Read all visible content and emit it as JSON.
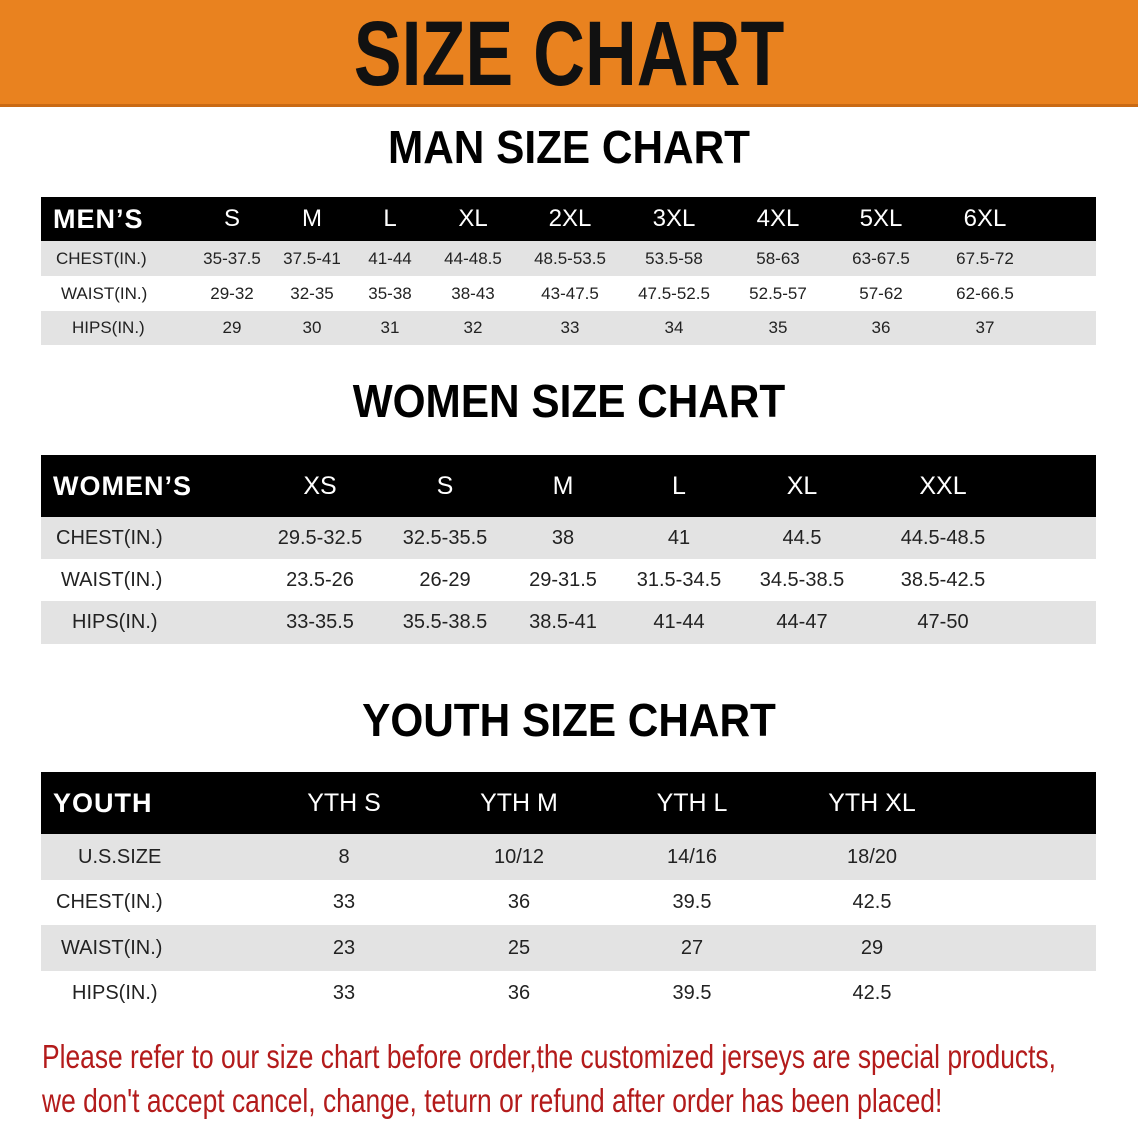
{
  "banner": {
    "title": "SIZE CHART",
    "color": "#e9821f"
  },
  "men": {
    "title": "MAN SIZE CHART",
    "header_label": "MEN’S",
    "sizes": [
      "S",
      "M",
      "L",
      "XL",
      "2XL",
      "3XL",
      "4XL",
      "5XL",
      "6XL"
    ],
    "rows": [
      {
        "label": "CHEST(IN.)",
        "values": [
          "35-37.5",
          "37.5-41",
          "41-44",
          "44-48.5",
          "48.5-53.5",
          "53.5-58",
          "58-63",
          "63-67.5",
          "67.5-72"
        ]
      },
      {
        "label": "WAIST(IN.)",
        "values": [
          "29-32",
          "32-35",
          "35-38",
          "38-43",
          "43-47.5",
          "47.5-52.5",
          "52.5-57",
          "57-62",
          "62-66.5"
        ]
      },
      {
        "label": "HIPS(IN.)",
        "values": [
          "29",
          "30",
          "31",
          "32",
          "33",
          "34",
          "35",
          "36",
          "37"
        ]
      }
    ]
  },
  "women": {
    "title": "WOMEN SIZE CHART",
    "header_label": "WOMEN’S",
    "sizes": [
      "XS",
      "S",
      "M",
      "L",
      "XL",
      "XXL"
    ],
    "rows": [
      {
        "label": "CHEST(IN.)",
        "values": [
          "29.5-32.5",
          "32.5-35.5",
          "38",
          "41",
          "44.5",
          "44.5-48.5"
        ]
      },
      {
        "label": "WAIST(IN.)",
        "values": [
          "23.5-26",
          "26-29",
          "29-31.5",
          "31.5-34.5",
          "34.5-38.5",
          "38.5-42.5"
        ]
      },
      {
        "label": "HIPS(IN.)",
        "values": [
          "33-35.5",
          "35.5-38.5",
          "38.5-41",
          "41-44",
          "44-47",
          "47-50"
        ]
      }
    ]
  },
  "youth": {
    "title": "YOUTH SIZE CHART",
    "header_label": "YOUTH",
    "sizes": [
      "YTH S",
      "YTH M",
      "YTH L",
      "YTH XL"
    ],
    "rows": [
      {
        "label": "U.S.SIZE",
        "values": [
          "8",
          "10/12",
          "14/16",
          "18/20"
        ]
      },
      {
        "label": "CHEST(IN.)",
        "values": [
          "33",
          "36",
          "39.5",
          "42.5"
        ]
      },
      {
        "label": "WAIST(IN.)",
        "values": [
          "23",
          "25",
          "27",
          "29"
        ]
      },
      {
        "label": "HIPS(IN.)",
        "values": [
          "33",
          "36",
          "39.5",
          "42.5"
        ]
      }
    ]
  },
  "notice": {
    "line1": "Please refer to our size chart before order,the customized jerseys are special products,",
    "line2": "we don't accept cancel, change, teturn or refund after order has been placed!",
    "color": "#b31b1b"
  }
}
